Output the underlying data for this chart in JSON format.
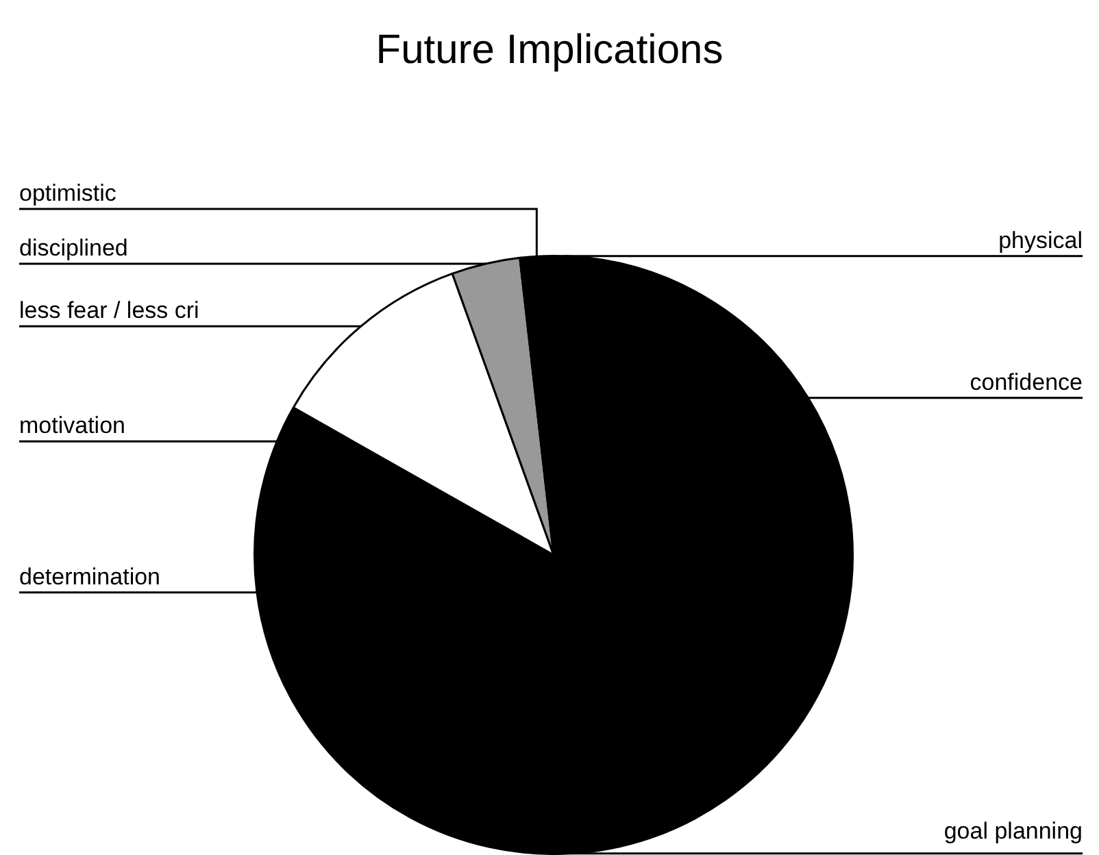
{
  "chart_data": {
    "type": "pie",
    "title": "Future Implications",
    "categories": [
      "physical",
      "confidence",
      "goal planning",
      "determination",
      "motivation",
      "less fear / less cri",
      "disciplined",
      "optimistic"
    ],
    "values": [
      1,
      30.4,
      35.4,
      12.4,
      4,
      11.3,
      3.7,
      1.8
    ],
    "colors": [
      "#000000",
      "#000000",
      "#000000",
      "#000000",
      "#000000",
      "#ffffff",
      "#999999",
      "#000000"
    ],
    "legend": false
  }
}
